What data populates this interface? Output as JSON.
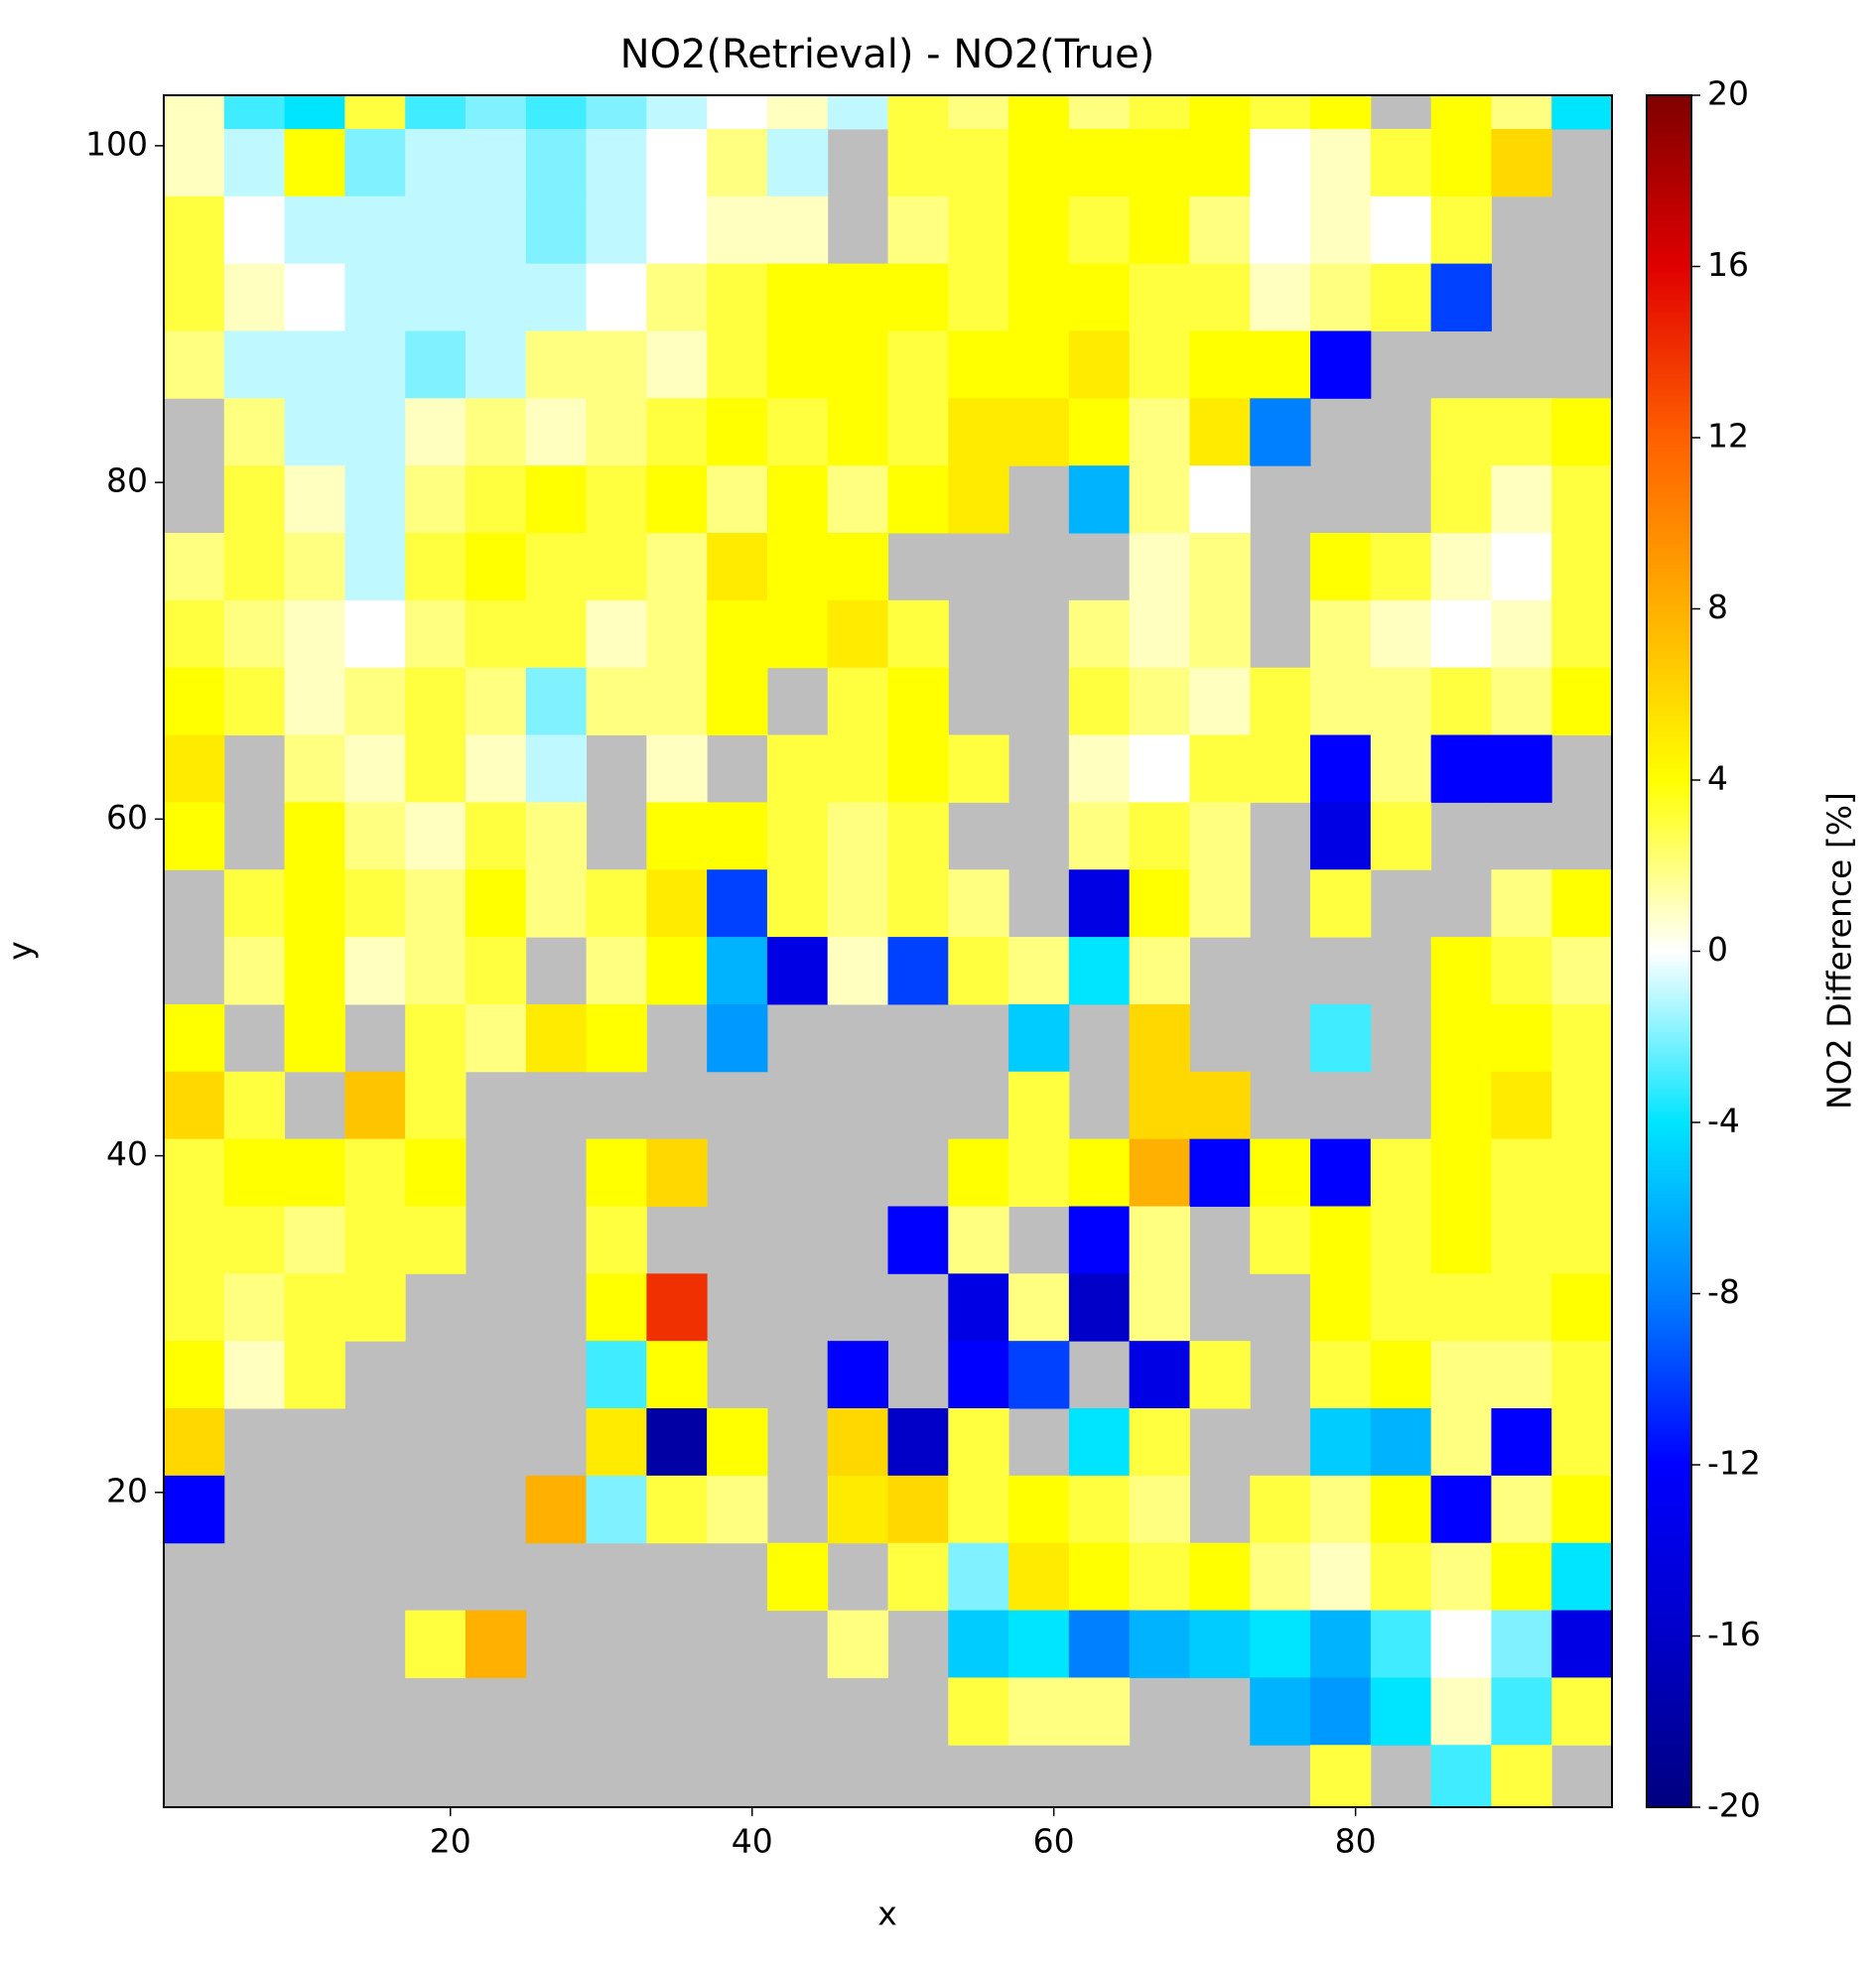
{
  "chart_data": {
    "type": "heatmap",
    "title": "NO2(Retrieval) - NO2(True)",
    "xlabel": "x",
    "ylabel": "y",
    "colorbar_label": "NO2 Difference [%]",
    "xlim": [
      1,
      97
    ],
    "ylim": [
      1.3,
      103
    ],
    "xticks": [
      20,
      40,
      60,
      80
    ],
    "yticks": [
      20,
      40,
      60,
      80,
      100
    ],
    "clim": [
      -20,
      20
    ],
    "cticks": [
      -20,
      -16,
      -12,
      -8,
      -4,
      0,
      4,
      8,
      12,
      16,
      20
    ],
    "colormap": [
      "#00007f",
      "#0000c8",
      "#0000ff",
      "#0080ff",
      "#00e5ff",
      "#ffffff",
      "#ffff00",
      "#ffb000",
      "#ff6000",
      "#e00000",
      "#7f0000"
    ],
    "nan_color": "#bebebe",
    "x": [
      3,
      7,
      11,
      15,
      19,
      23,
      27,
      31,
      35,
      39,
      43,
      47,
      51,
      55,
      59,
      63,
      67,
      71,
      75,
      79,
      83,
      87,
      91,
      95
    ],
    "y": [
      103,
      99,
      95,
      91,
      87,
      83,
      79,
      75,
      71,
      67,
      63,
      59,
      55,
      51,
      47,
      43,
      39,
      35,
      31,
      27,
      23,
      19,
      15,
      11,
      7,
      3
    ],
    "values": [
      [
        1,
        -3,
        -4,
        3,
        -3,
        -2,
        -3,
        -2,
        -1,
        0,
        1,
        -1,
        3,
        2,
        4,
        2,
        3,
        4,
        3,
        4,
        null,
        4,
        2,
        -4
      ],
      [
        1,
        -1,
        4,
        -2,
        -1,
        -1,
        -2,
        -1,
        0,
        2,
        -1,
        null,
        3,
        3,
        4,
        4,
        4,
        4,
        0,
        1,
        3,
        4,
        6,
        null
      ],
      [
        3,
        0,
        -1,
        -1,
        -1,
        -1,
        -2,
        -1,
        0,
        1,
        1,
        null,
        2,
        3,
        4,
        3,
        4,
        2,
        0,
        1,
        0,
        3,
        null,
        null
      ],
      [
        3,
        1,
        0,
        -1,
        -1,
        -1,
        -1,
        0,
        2,
        3,
        4,
        4,
        4,
        3,
        4,
        4,
        3,
        3,
        1,
        2,
        3,
        -10,
        null,
        null
      ],
      [
        2,
        -1,
        -1,
        -1,
        -2,
        -1,
        2,
        2,
        1,
        3,
        4,
        4,
        3,
        4,
        4,
        5,
        3,
        4,
        4,
        -12,
        null,
        null,
        null,
        null
      ],
      [
        null,
        2,
        -1,
        -1,
        1,
        2,
        1,
        2,
        3,
        4,
        3,
        4,
        3,
        5,
        5,
        4,
        2,
        5,
        -8,
        null,
        null,
        3,
        3,
        4
      ],
      [
        null,
        3,
        1,
        -1,
        2,
        3,
        4,
        3,
        4,
        2,
        4,
        2,
        4,
        5,
        null,
        -6,
        2,
        0,
        null,
        null,
        null,
        3,
        1,
        3
      ],
      [
        2,
        3,
        2,
        -1,
        3,
        4,
        3,
        3,
        2,
        5,
        4,
        4,
        null,
        null,
        null,
        null,
        1,
        2,
        null,
        4,
        3,
        1,
        0,
        3
      ],
      [
        3,
        2,
        1,
        0,
        2,
        3,
        3,
        1,
        2,
        4,
        4,
        5,
        3,
        null,
        null,
        2,
        1,
        2,
        null,
        2,
        1,
        0,
        1,
        3
      ],
      [
        4,
        3,
        1,
        2,
        3,
        2,
        -2,
        2,
        2,
        4,
        null,
        3,
        4,
        null,
        null,
        3,
        2,
        1,
        3,
        2,
        2,
        3,
        2,
        4
      ],
      [
        5,
        null,
        2,
        1,
        3,
        1,
        -1,
        null,
        1,
        null,
        3,
        3,
        4,
        3,
        null,
        1,
        0,
        3,
        3,
        -12,
        2,
        -12,
        -12,
        null
      ],
      [
        4,
        null,
        4,
        2,
        1,
        3,
        2,
        null,
        4,
        4,
        3,
        2,
        3,
        null,
        null,
        2,
        3,
        2,
        null,
        -14,
        3,
        null,
        null,
        null
      ],
      [
        null,
        3,
        4,
        3,
        2,
        4,
        2,
        3,
        5,
        -10,
        3,
        2,
        3,
        2,
        null,
        -14,
        4,
        2,
        null,
        3,
        null,
        null,
        2,
        4
      ],
      [
        null,
        2,
        4,
        1,
        2,
        3,
        null,
        2,
        4,
        -6,
        -14,
        1,
        -10,
        3,
        2,
        -4,
        2,
        null,
        null,
        null,
        null,
        4,
        3,
        2
      ],
      [
        4,
        null,
        4,
        null,
        3,
        2,
        5,
        4,
        null,
        -7,
        null,
        null,
        null,
        null,
        -5,
        null,
        6,
        null,
        null,
        -3,
        null,
        4,
        4,
        3
      ],
      [
        6,
        3,
        null,
        7,
        3,
        null,
        null,
        null,
        null,
        null,
        null,
        null,
        null,
        null,
        3,
        null,
        6,
        6,
        null,
        null,
        null,
        4,
        5,
        3
      ],
      [
        3,
        4,
        4,
        3,
        4,
        null,
        null,
        4,
        6,
        null,
        null,
        null,
        null,
        4,
        3,
        4,
        8,
        -12,
        4,
        -12,
        3,
        4,
        3,
        3
      ],
      [
        3,
        3,
        2,
        3,
        3,
        null,
        null,
        3,
        null,
        null,
        null,
        null,
        -12,
        2,
        null,
        -12,
        2,
        null,
        3,
        4,
        3,
        4,
        3,
        3
      ],
      [
        3,
        2,
        3,
        3,
        null,
        null,
        null,
        4,
        14,
        null,
        null,
        null,
        null,
        -14,
        2,
        -16,
        2,
        null,
        null,
        4,
        3,
        3,
        3,
        4
      ],
      [
        4,
        1,
        3,
        null,
        null,
        null,
        null,
        -3,
        4,
        null,
        null,
        -12,
        null,
        -12,
        -10,
        null,
        -14,
        3,
        null,
        3,
        4,
        2,
        2,
        3
      ],
      [
        6,
        null,
        null,
        null,
        null,
        null,
        null,
        5,
        -18,
        4,
        null,
        6,
        -16,
        3,
        null,
        -4,
        3,
        null,
        null,
        -5,
        -6,
        2,
        -12,
        3
      ],
      [
        -12,
        null,
        null,
        null,
        null,
        null,
        8,
        -2,
        3,
        2,
        null,
        5,
        6,
        3,
        4,
        3,
        2,
        null,
        3,
        2,
        4,
        -12,
        2,
        4
      ],
      [
        null,
        null,
        null,
        null,
        null,
        null,
        null,
        null,
        null,
        null,
        4,
        null,
        3,
        -2,
        5,
        4,
        3,
        4,
        2,
        1,
        3,
        2,
        4,
        -4
      ],
      [
        null,
        null,
        null,
        null,
        3,
        8,
        null,
        null,
        null,
        null,
        null,
        2,
        null,
        -5,
        -4,
        -8,
        -6,
        -5,
        -4,
        -6,
        -3,
        0,
        -2,
        -14
      ],
      [
        null,
        null,
        null,
        null,
        null,
        null,
        null,
        null,
        null,
        null,
        null,
        null,
        null,
        3,
        2,
        2,
        null,
        null,
        -6,
        -7,
        -4,
        1,
        -3,
        3
      ],
      [
        null,
        null,
        null,
        null,
        null,
        null,
        null,
        null,
        null,
        null,
        null,
        null,
        null,
        null,
        null,
        null,
        null,
        null,
        null,
        3,
        null,
        -3,
        3,
        null
      ]
    ]
  }
}
